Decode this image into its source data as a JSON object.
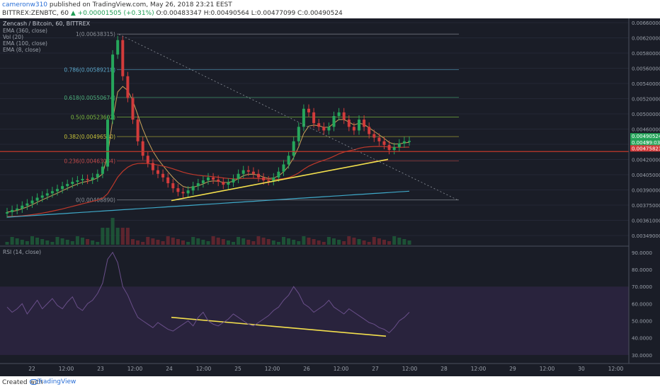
{
  "header": {
    "username": "cameronw310",
    "published": "published on TradingView.com, May 26, 2018 23:21 EEST",
    "symbol": "BITTREX:ZENBTC, 60",
    "change": "▲ +0.00001505 (+0.31%)",
    "ohlc": "O:0.00483347  H:0.00490564  L:0.00477099  C:0.00490524"
  },
  "main": {
    "title": "Zencash / Bitcoin, 60, BITTREX",
    "indicators": [
      "EMA (360, close)",
      "Vol (20)",
      "EMA (100, close)",
      "EMA (8, close)"
    ]
  },
  "rsi": {
    "label": "RSI (14, close)"
  },
  "fib": [
    {
      "label": "1(0.00638315)",
      "value": 0.00638315,
      "color": "#8a8f98"
    },
    {
      "label": "0.786(0.00589218)",
      "value": 0.00589218,
      "color": "#5aa6c9"
    },
    {
      "label": "0.618(0.00550674)",
      "value": 0.00550674,
      "color": "#4caf7a"
    },
    {
      "label": "0.5(0.00523602)",
      "value": 0.00523602,
      "color": "#7fbf3f"
    },
    {
      "label": "0.382(0.00496530)",
      "value": 0.0049653,
      "color": "#c5c13a"
    },
    {
      "label": "0.236(0.00463034)",
      "value": 0.00463034,
      "color": "#c34a4a"
    },
    {
      "label": "0(0.00408890)",
      "value": 0.0040889,
      "color": "#8a8f98"
    }
  ],
  "price_axis": [
    "0.00660000",
    "0.00620000",
    "0.00580000",
    "0.00560000",
    "0.00540000",
    "0.00520000",
    "0.00500000",
    "0.00460000",
    "0.00440000",
    "0.00420000",
    "0.00405000",
    "0.00390000",
    "0.00375000",
    "0.00361000",
    "0.00349000"
  ],
  "price_tags": [
    {
      "label": "0.00490524",
      "color": "#26a65b"
    },
    {
      "label": "0.0049",
      "extra": "39:03",
      "color": "#26a65b"
    },
    {
      "label": "0.00475821",
      "color": "#d23b3b"
    }
  ],
  "rsi_axis": [
    "90.0000",
    "80.0000",
    "70.0000",
    "60.0000",
    "50.0000",
    "40.0000",
    "30.0000"
  ],
  "x_axis": [
    "22",
    "12:00",
    "23",
    "12:00",
    "24",
    "12:00",
    "25",
    "12:00",
    "26",
    "12:00",
    "27",
    "12:00",
    "28",
    "12:00",
    "29",
    "12:00",
    "30",
    "12:00"
  ],
  "footer": {
    "created": "Created with",
    "brand": "TradingView"
  },
  "colors": {
    "bg": "#1a1d27",
    "up": "#26a65b",
    "down": "#d23b3b",
    "ema8": "#c9a25a",
    "ema100": "#c0392b",
    "ema360": "#3fa9c9",
    "trend": "#f4e04d",
    "rsi_band": "#2b2540"
  },
  "chart_data": {
    "type": "candlestick",
    "symbol": "ZENBTC",
    "timeframe": "60",
    "x_ticks": [
      "22",
      "12:00",
      "23",
      "12:00",
      "24",
      "12:00",
      "25",
      "12:00",
      "26",
      "12:00",
      "27",
      "12:00",
      "28",
      "12:00",
      "29",
      "12:00",
      "30",
      "12:00"
    ],
    "ylim": [
      0.00345,
      0.0066
    ],
    "closes": [
      0.00392,
      0.00395,
      0.00397,
      0.00401,
      0.00404,
      0.00408,
      0.00412,
      0.00415,
      0.00418,
      0.00421,
      0.00424,
      0.00428,
      0.00431,
      0.00434,
      0.00436,
      0.00438,
      0.00437,
      0.0044,
      0.00445,
      0.00455,
      0.0052,
      0.0061,
      0.0063,
      0.0058,
      0.0055,
      0.0052,
      0.0049,
      0.0047,
      0.0046,
      0.0045,
      0.00445,
      0.0044,
      0.00432,
      0.00425,
      0.0042,
      0.00418,
      0.00422,
      0.00428,
      0.00432,
      0.00436,
      0.0044,
      0.00437,
      0.00434,
      0.0043,
      0.00433,
      0.00438,
      0.00445,
      0.0045,
      0.00448,
      0.00445,
      0.0044,
      0.00436,
      0.00435,
      0.0044,
      0.00448,
      0.00458,
      0.0047,
      0.0049,
      0.0051,
      0.00535,
      0.0053,
      0.00515,
      0.0051,
      0.00505,
      0.0051,
      0.00525,
      0.0053,
      0.0052,
      0.0051,
      0.00505,
      0.0052,
      0.0051,
      0.005,
      0.00495,
      0.0049,
      0.00485,
      0.00478,
      0.00482,
      0.00487,
      0.0049,
      0.00490524
    ],
    "rsi_values": [
      58,
      55,
      57,
      60,
      54,
      58,
      62,
      57,
      60,
      63,
      59,
      57,
      61,
      64,
      58,
      56,
      60,
      62,
      66,
      72,
      86,
      90,
      84,
      70,
      65,
      58,
      52,
      50,
      48,
      46,
      49,
      47,
      45,
      44,
      46,
      48,
      50,
      47,
      52,
      55,
      50,
      48,
      47,
      49,
      51,
      54,
      52,
      50,
      48,
      47,
      49,
      51,
      53,
      56,
      58,
      62,
      65,
      70,
      66,
      60,
      58,
      55,
      57,
      59,
      62,
      58,
      56,
      54,
      57,
      55,
      53,
      51,
      49,
      48,
      46,
      45,
      43,
      46,
      50,
      52,
      55
    ],
    "fib_levels": {
      "1": 0.00638315,
      "0.786": 0.00589218,
      "0.618": 0.00550674,
      "0.5": 0.00523602,
      "0.382": 0.0049653,
      "0.236": 0.00463034,
      "0": 0.0040889
    },
    "horizontal_line": 0.00475821,
    "last_price": 0.00490524,
    "rsi_ylim": [
      25,
      92
    ],
    "rsi_band": [
      30,
      70
    ]
  }
}
